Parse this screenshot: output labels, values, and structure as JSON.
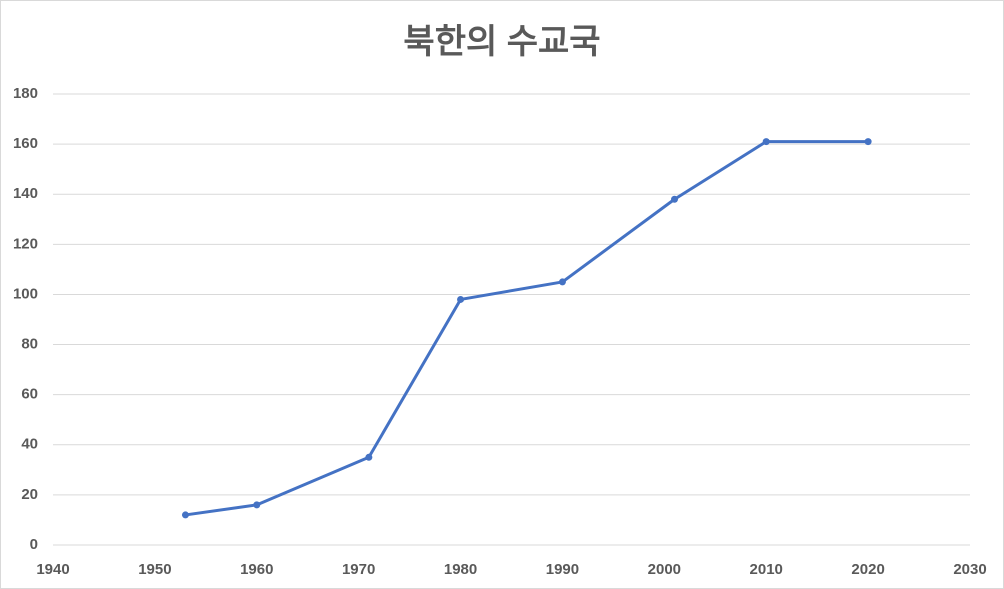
{
  "chart_data": {
    "type": "line",
    "title": "북한의 수교국",
    "x": [
      1953,
      1960,
      1971,
      1980,
      1990,
      2001,
      2010,
      2020
    ],
    "series": [
      {
        "color": "#4472c4",
        "values": [
          12,
          16,
          35,
          98,
          105,
          138,
          161,
          161
        ]
      }
    ],
    "xlim": [
      1940,
      2030
    ],
    "xticks": [
      1940,
      1950,
      1960,
      1970,
      1980,
      1990,
      2000,
      2010,
      2020,
      2030
    ],
    "ylim": [
      0,
      180
    ],
    "yticks": [
      0,
      20,
      40,
      60,
      80,
      100,
      120,
      140,
      160,
      180
    ],
    "grid": true
  }
}
